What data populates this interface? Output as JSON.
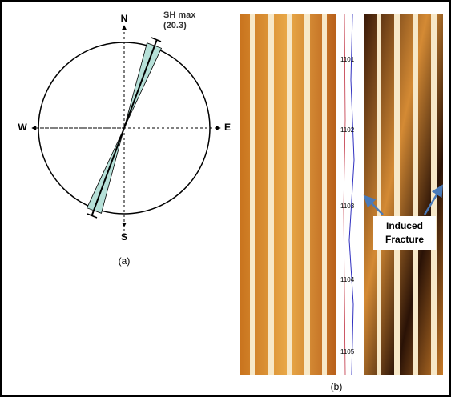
{
  "panel_a": {
    "north": "N",
    "south": "S",
    "west": "W",
    "east": "E",
    "sh_max_label": "SH max",
    "sh_max_value": "(20.3)",
    "caption": "(a)"
  },
  "panel_b": {
    "depths": [
      "1101",
      "1102",
      "1103",
      "1104",
      "1105"
    ],
    "annotation": [
      "Induced",
      "Fracture"
    ],
    "caption": "(b)"
  }
}
